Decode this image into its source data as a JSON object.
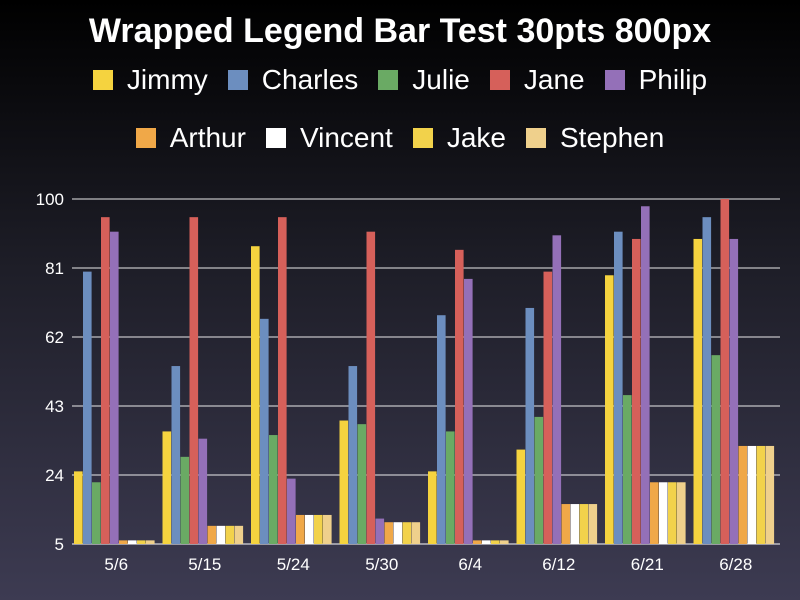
{
  "chart_data": {
    "type": "bar",
    "title": "Wrapped Legend Bar Test 30pts 800px",
    "xlabel": "",
    "ylabel": "",
    "categories": [
      "5/6",
      "5/15",
      "5/24",
      "5/30",
      "6/4",
      "6/12",
      "6/21",
      "6/28"
    ],
    "ylim": [
      5,
      100
    ],
    "yticks": [
      "5",
      "24",
      "43",
      "62",
      "81",
      "100"
    ],
    "grid": true,
    "legend_position": "top",
    "series": [
      {
        "name": "Jimmy",
        "color": "#f5d33f",
        "values": [
          25,
          36,
          87,
          39,
          25,
          31,
          79,
          89
        ]
      },
      {
        "name": "Charles",
        "color": "#6c8ebf",
        "values": [
          80,
          54,
          67,
          54,
          68,
          70,
          91,
          95
        ]
      },
      {
        "name": "Julie",
        "color": "#6aaa64",
        "values": [
          22,
          29,
          35,
          38,
          36,
          40,
          46,
          57
        ]
      },
      {
        "name": "Jane",
        "color": "#d6605a",
        "values": [
          95,
          95,
          95,
          91,
          86,
          80,
          89,
          100
        ]
      },
      {
        "name": "Philip",
        "color": "#9470b8",
        "values": [
          91,
          34,
          23,
          12,
          78,
          90,
          98,
          89
        ]
      },
      {
        "name": "Arthur",
        "color": "#f0a848",
        "values": [
          6,
          10,
          13,
          11,
          6,
          16,
          22,
          32
        ]
      },
      {
        "name": "Vincent",
        "color": "#ffffff",
        "values": [
          6,
          10,
          13,
          11,
          6,
          16,
          22,
          32
        ]
      },
      {
        "name": "Jake",
        "color": "#f2d24b",
        "values": [
          6,
          10,
          13,
          11,
          6,
          16,
          22,
          32
        ]
      },
      {
        "name": "Stephen",
        "color": "#efd08c",
        "values": [
          6,
          10,
          13,
          11,
          6,
          16,
          22,
          32
        ]
      }
    ]
  }
}
